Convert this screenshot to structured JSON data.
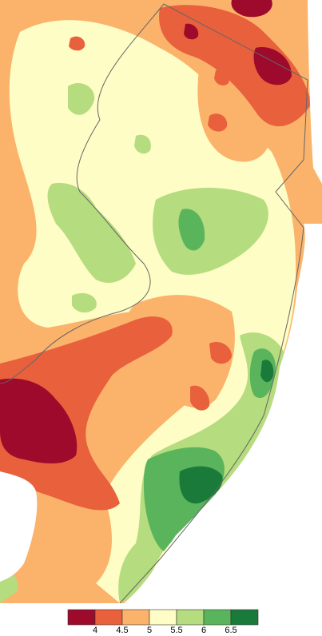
{
  "legend": {
    "colors": [
      "#9e0a2b",
      "#e8603c",
      "#fbb36b",
      "#fefdc6",
      "#b5dc7e",
      "#5ab45c",
      "#1a7a3a"
    ],
    "ticks": [
      4,
      4.5,
      5,
      5.5,
      6,
      6.5
    ]
  }
}
